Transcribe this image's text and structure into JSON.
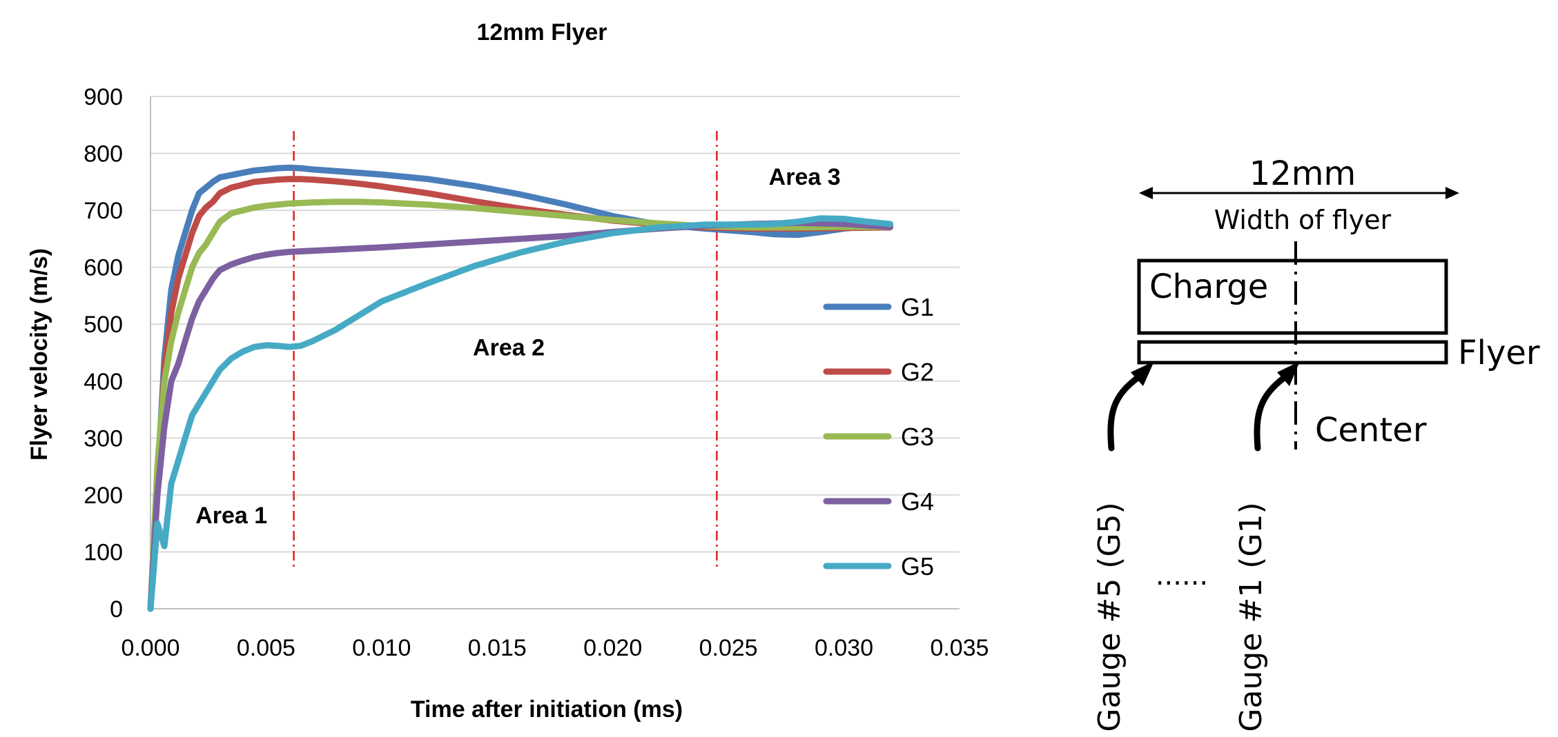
{
  "chart_data": {
    "type": "line",
    "title": "12mm Flyer",
    "xlabel": "Time after initiation (ms)",
    "ylabel": "Flyer velocity (m/s)",
    "xlim": [
      0,
      0.035
    ],
    "ylim": [
      0,
      900
    ],
    "x_ticks": [
      "0.000",
      "0.005",
      "0.010",
      "0.015",
      "0.020",
      "0.025",
      "0.030",
      "0.035"
    ],
    "y_ticks": [
      "0",
      "100",
      "200",
      "300",
      "400",
      "500",
      "600",
      "700",
      "800",
      "900"
    ],
    "grid": "horizontal",
    "legend_position": "right",
    "vertical_markers": [
      0.0062,
      0.0245
    ],
    "annotations": [
      {
        "label": "Area 1",
        "x": 0.0035,
        "y": 150
      },
      {
        "label": "Area 2",
        "x": 0.0155,
        "y": 445
      },
      {
        "label": "Area 3",
        "x": 0.0283,
        "y": 745
      }
    ],
    "series": [
      {
        "name": "G1",
        "color": "#4a7ebb",
        "x": [
          0,
          0.0003,
          0.0006,
          0.0009,
          0.0012,
          0.0015,
          0.0018,
          0.0021,
          0.0024,
          0.0027,
          0.003,
          0.0035,
          0.004,
          0.0045,
          0.005,
          0.0055,
          0.006,
          0.0065,
          0.007,
          0.008,
          0.009,
          0.01,
          0.012,
          0.014,
          0.016,
          0.018,
          0.02,
          0.022,
          0.024,
          0.025,
          0.026,
          0.027,
          0.028,
          0.029,
          0.03,
          0.031,
          0.032
        ],
        "y": [
          0,
          220,
          440,
          560,
          620,
          660,
          700,
          730,
          740,
          750,
          758,
          762,
          766,
          770,
          772,
          774,
          775,
          774,
          772,
          769,
          766,
          763,
          755,
          743,
          728,
          710,
          690,
          675,
          668,
          665,
          662,
          658,
          657,
          662,
          668,
          672,
          672
        ]
      },
      {
        "name": "G2",
        "color": "#be4b48",
        "x": [
          0,
          0.0003,
          0.0006,
          0.0009,
          0.0012,
          0.0015,
          0.0018,
          0.0021,
          0.0024,
          0.0027,
          0.003,
          0.0035,
          0.004,
          0.0045,
          0.005,
          0.0055,
          0.006,
          0.0065,
          0.007,
          0.008,
          0.009,
          0.01,
          0.012,
          0.014,
          0.016,
          0.018,
          0.02,
          0.022,
          0.024,
          0.026,
          0.028,
          0.03,
          0.032
        ],
        "y": [
          0,
          210,
          420,
          520,
          580,
          620,
          660,
          690,
          705,
          715,
          730,
          740,
          745,
          750,
          752,
          754,
          755,
          755,
          754,
          751,
          747,
          742,
          730,
          716,
          703,
          692,
          682,
          675,
          670,
          668,
          668,
          669,
          670
        ]
      },
      {
        "name": "G3",
        "color": "#98b954",
        "x": [
          0,
          0.0003,
          0.0006,
          0.0009,
          0.0012,
          0.0015,
          0.0018,
          0.0021,
          0.0024,
          0.0027,
          0.003,
          0.0035,
          0.004,
          0.0045,
          0.005,
          0.0055,
          0.006,
          0.007,
          0.008,
          0.009,
          0.01,
          0.012,
          0.014,
          0.016,
          0.018,
          0.02,
          0.022,
          0.024,
          0.026,
          0.028,
          0.03,
          0.032
        ],
        "y": [
          0,
          250,
          400,
          470,
          520,
          560,
          600,
          625,
          640,
          660,
          680,
          695,
          700,
          705,
          708,
          710,
          712,
          714,
          715,
          715,
          714,
          710,
          704,
          697,
          690,
          683,
          677,
          672,
          670,
          670,
          671,
          671
        ]
      },
      {
        "name": "G4",
        "color": "#7d60a0",
        "x": [
          0,
          0.0003,
          0.0006,
          0.0009,
          0.0012,
          0.0015,
          0.0018,
          0.0021,
          0.0024,
          0.0027,
          0.003,
          0.0035,
          0.004,
          0.0045,
          0.005,
          0.0055,
          0.006,
          0.007,
          0.008,
          0.009,
          0.01,
          0.012,
          0.014,
          0.016,
          0.018,
          0.02,
          0.022,
          0.024,
          0.026,
          0.028,
          0.03,
          0.032
        ],
        "y": [
          0,
          200,
          320,
          400,
          430,
          470,
          510,
          540,
          560,
          580,
          595,
          605,
          612,
          618,
          622,
          625,
          627,
          629,
          631,
          633,
          635,
          640,
          645,
          650,
          655,
          662,
          668,
          673,
          676,
          678,
          676,
          671
        ]
      },
      {
        "name": "G5",
        "color": "#46aac5",
        "x": [
          0,
          0.0003,
          0.0006,
          0.0009,
          0.0012,
          0.0015,
          0.0018,
          0.0021,
          0.0024,
          0.0027,
          0.003,
          0.0035,
          0.004,
          0.0045,
          0.005,
          0.0055,
          0.006,
          0.0065,
          0.007,
          0.008,
          0.009,
          0.01,
          0.012,
          0.014,
          0.016,
          0.018,
          0.02,
          0.022,
          0.024,
          0.025,
          0.026,
          0.027,
          0.028,
          0.029,
          0.03,
          0.031,
          0.032
        ],
        "y": [
          0,
          150,
          110,
          220,
          260,
          300,
          340,
          360,
          380,
          400,
          420,
          440,
          452,
          460,
          463,
          462,
          460,
          462,
          470,
          490,
          515,
          540,
          572,
          602,
          626,
          645,
          660,
          670,
          675,
          675,
          675,
          676,
          680,
          686,
          685,
          680,
          676
        ]
      }
    ]
  },
  "schematic": {
    "width_value": "12mm",
    "width_caption": "Width of flyer",
    "charge_label": "Charge",
    "flyer_label": "Flyer",
    "center_label": "Center",
    "gauge_5_label": "Gauge #5 (G5)",
    "gauge_1_label": "Gauge #1 (G1)",
    "ellipsis": "......"
  },
  "colors": {
    "marker_line": "#e02020",
    "gridline": "#d9d9d9"
  }
}
